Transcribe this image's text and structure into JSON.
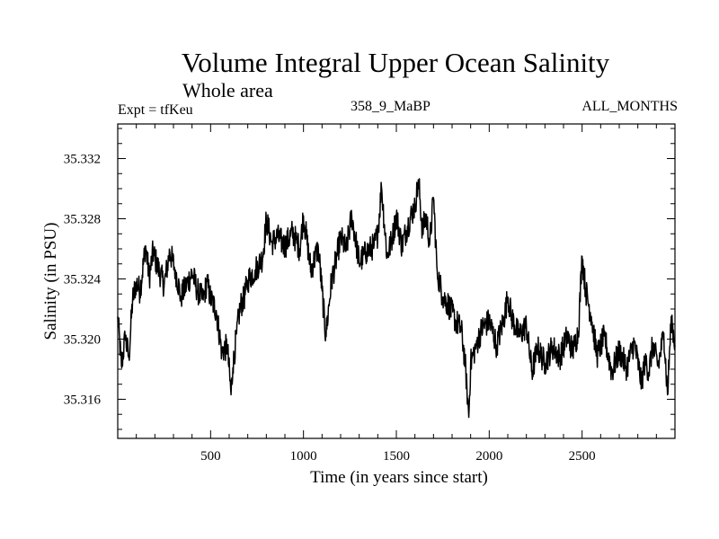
{
  "header": {
    "title": "Volume Integral Upper Ocean Salinity",
    "subtitle": "Whole area",
    "experiment": "Expt = tfKeu",
    "run_id": "358_9_MaBP",
    "months": "ALL_MONTHS"
  },
  "chart_data": {
    "type": "line",
    "title": "Volume Integral Upper Ocean Salinity",
    "subtitle": "Whole area",
    "xlabel": "Time (in years since start)",
    "ylabel": "Salinity (in PSU)",
    "xlim": [
      0,
      3000
    ],
    "ylim": [
      35.3134,
      35.3343
    ],
    "xticks": [
      500,
      1000,
      1500,
      2000,
      2500
    ],
    "xtick_labels": [
      "500",
      "1000",
      "1500",
      "2000",
      "2500"
    ],
    "yticks": [
      35.316,
      35.32,
      35.324,
      35.328,
      35.332
    ],
    "ytick_labels": [
      "35.316",
      "35.320",
      "35.324",
      "35.328",
      "35.332"
    ],
    "grid": false,
    "series": [
      {
        "color": "#000000",
        "x": [
          0,
          20,
          40,
          60,
          80,
          100,
          120,
          150,
          170,
          190,
          210,
          250,
          280,
          310,
          340,
          370,
          400,
          430,
          460,
          480,
          500,
          530,
          560,
          590,
          610,
          620,
          640,
          660,
          680,
          700,
          740,
          780,
          800,
          830,
          860,
          900,
          940,
          980,
          1000,
          1040,
          1080,
          1100,
          1120,
          1150,
          1180,
          1200,
          1230,
          1260,
          1300,
          1340,
          1380,
          1400,
          1420,
          1450,
          1480,
          1500,
          1530,
          1560,
          1600,
          1620,
          1640,
          1660,
          1680,
          1700,
          1720,
          1750,
          1780,
          1820,
          1850,
          1870,
          1880,
          1890,
          1900,
          1930,
          1960,
          2000,
          2040,
          2080,
          2100,
          2120,
          2160,
          2200,
          2230,
          2260,
          2300,
          2340,
          2380,
          2420,
          2450,
          2480,
          2500,
          2520,
          2550,
          2580,
          2620,
          2660,
          2700,
          2740,
          2780,
          2820,
          2840,
          2860,
          2880,
          2910,
          2940,
          2960,
          2980,
          3000
        ],
        "y": [
          35.3215,
          35.3182,
          35.3201,
          35.3188,
          35.3226,
          35.3238,
          35.3232,
          35.3262,
          35.3241,
          35.3258,
          35.325,
          35.3236,
          35.3258,
          35.3246,
          35.3228,
          35.3236,
          35.3244,
          35.3232,
          35.3226,
          35.3238,
          35.3227,
          35.3219,
          35.3192,
          35.3195,
          35.3163,
          35.3181,
          35.3204,
          35.3222,
          35.3227,
          35.3239,
          35.3246,
          35.3254,
          35.3279,
          35.3264,
          35.3268,
          35.3262,
          35.3271,
          35.326,
          35.3282,
          35.3246,
          35.3261,
          35.3232,
          35.3202,
          35.3238,
          35.3255,
          35.3268,
          35.3259,
          35.3282,
          35.3251,
          35.3258,
          35.3262,
          35.327,
          35.3301,
          35.3255,
          35.3268,
          35.3282,
          35.3262,
          35.3275,
          35.3289,
          35.3305,
          35.3272,
          35.3282,
          35.3264,
          35.3294,
          35.3245,
          35.3228,
          35.3223,
          35.3212,
          35.3206,
          35.3185,
          35.3168,
          35.3148,
          35.3184,
          35.3196,
          35.3207,
          35.3212,
          35.3196,
          35.3214,
          35.3228,
          35.3215,
          35.3202,
          35.3209,
          35.3178,
          35.3194,
          35.3184,
          35.3195,
          35.3188,
          35.3202,
          35.3192,
          35.3205,
          35.3255,
          35.3232,
          35.3215,
          35.3189,
          35.3202,
          35.3178,
          35.3192,
          35.3181,
          35.3198,
          35.3171,
          35.3187,
          35.3178,
          35.3196,
          35.3182,
          35.3204,
          35.3163,
          35.3215,
          35.3196
        ]
      }
    ]
  }
}
